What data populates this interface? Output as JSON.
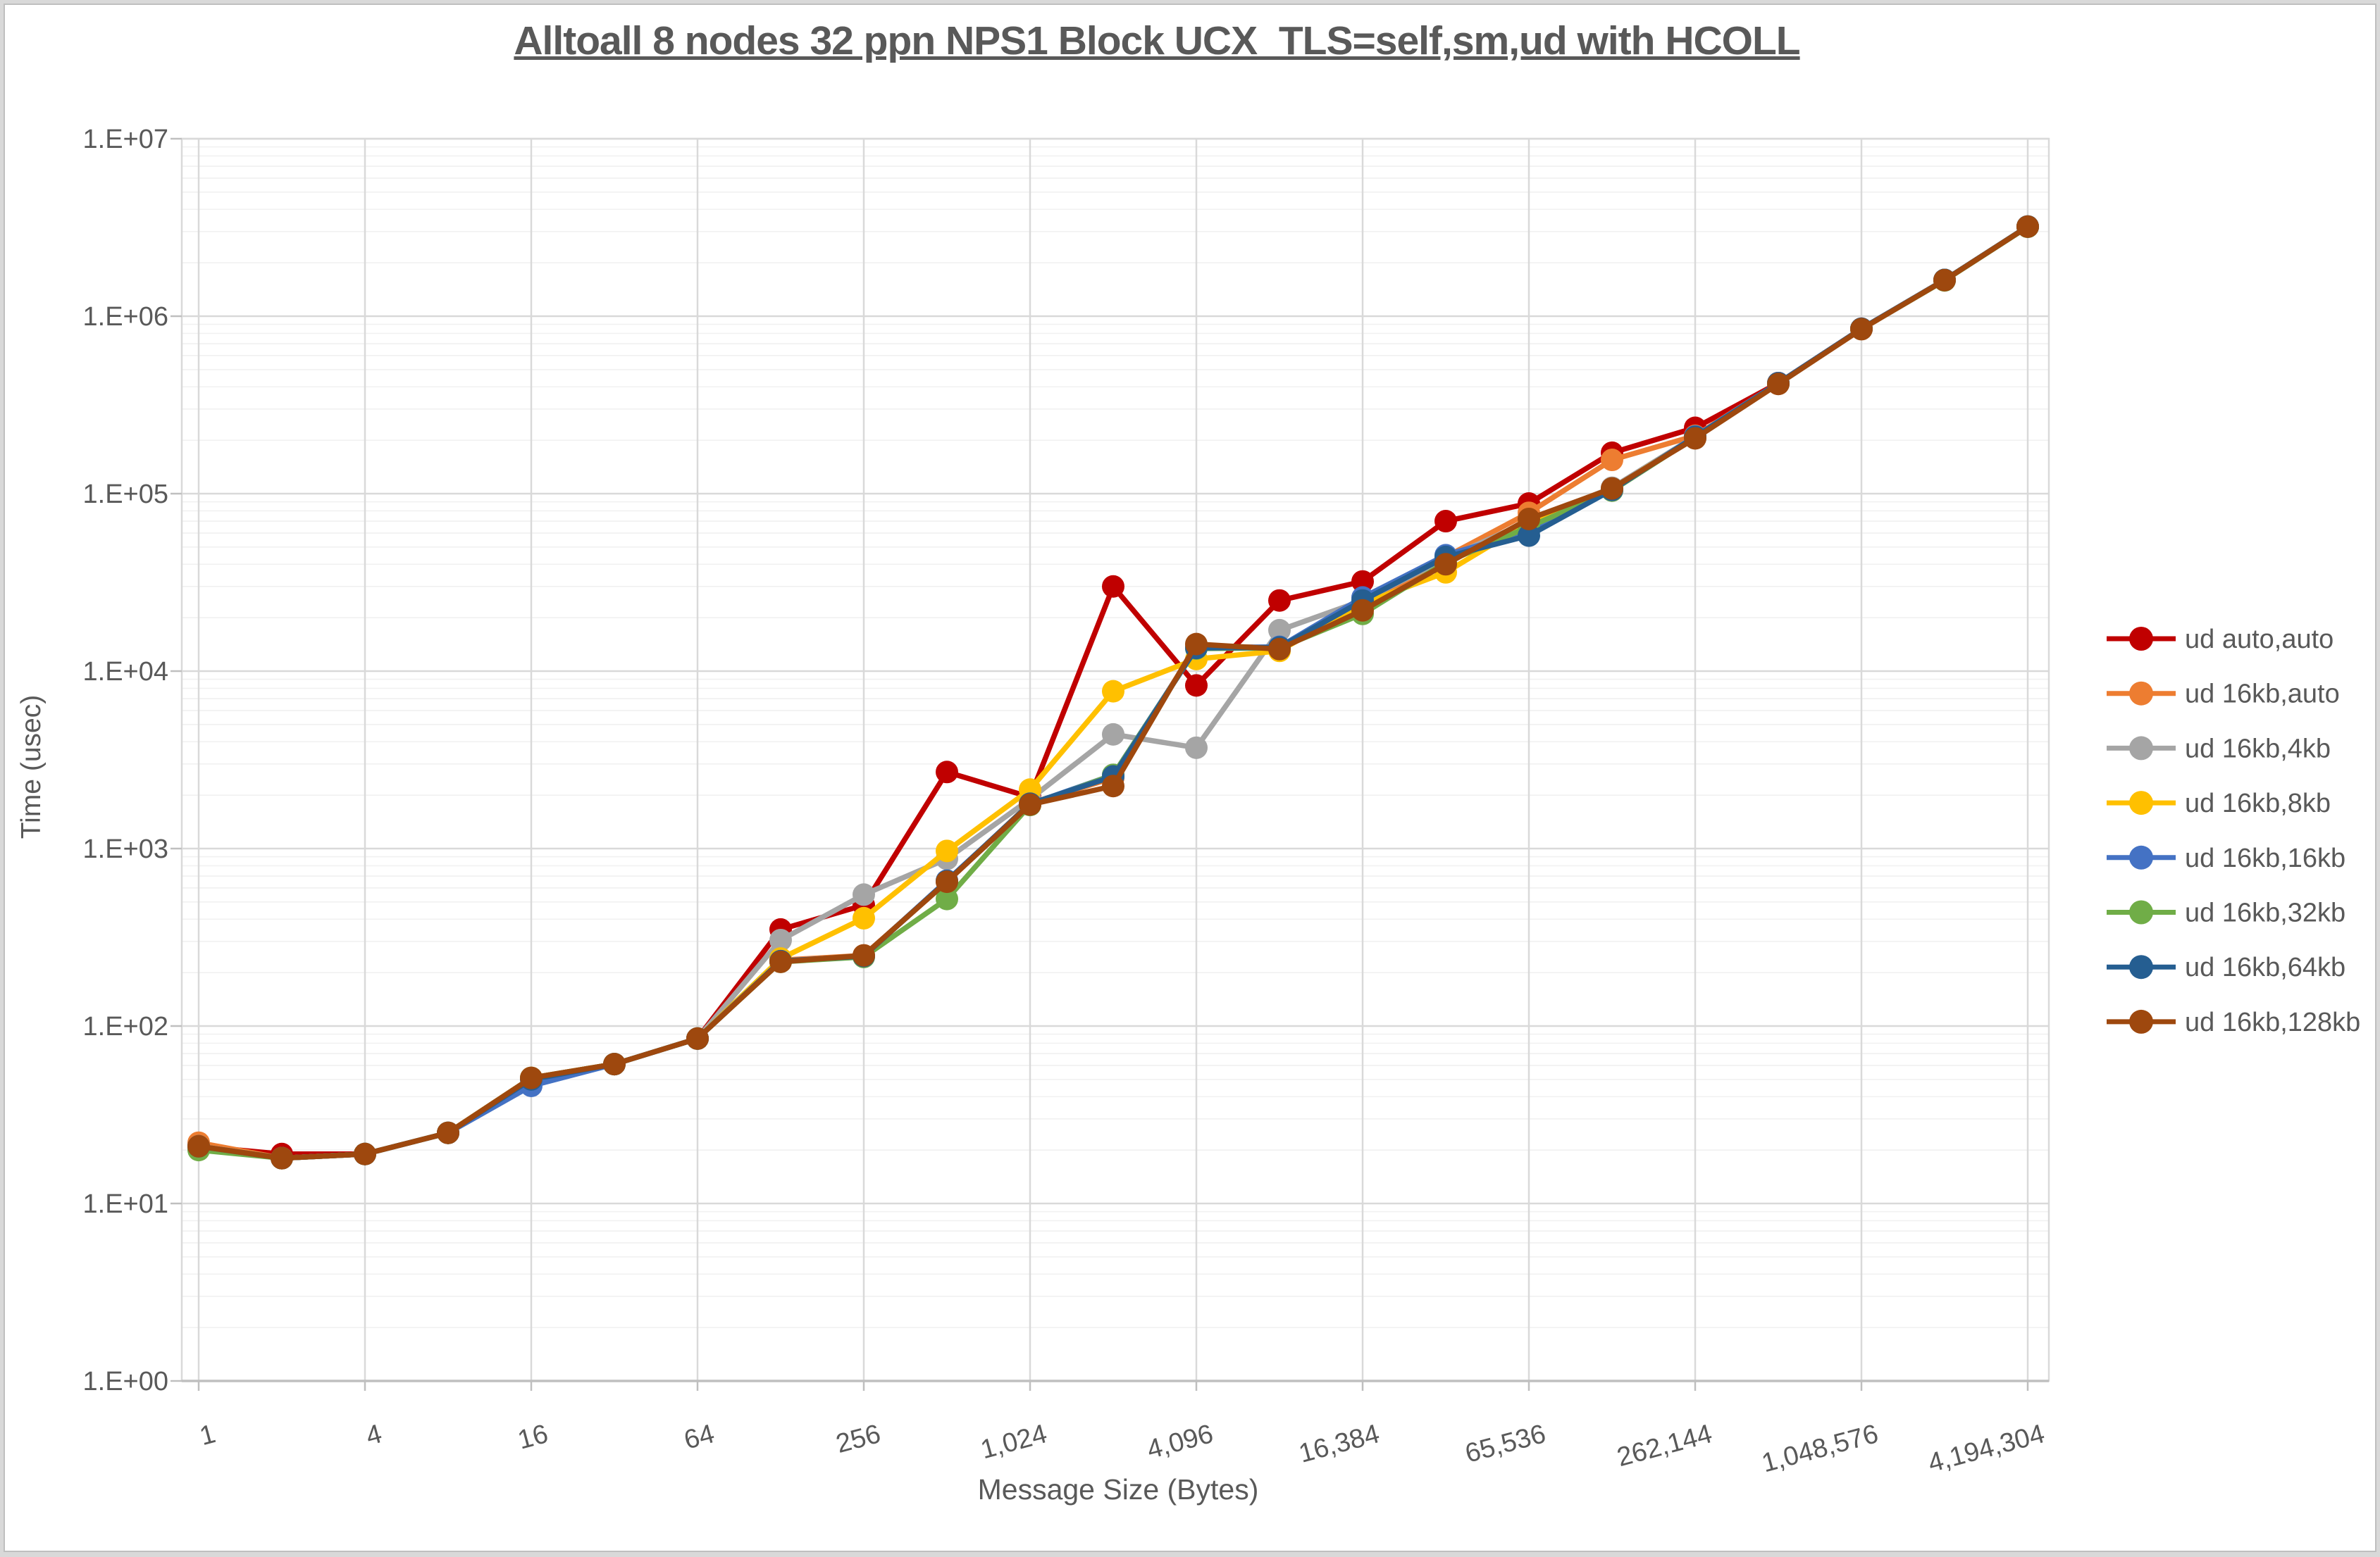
{
  "chart_data": {
    "type": "line",
    "title": "Alltoall 8 nodes 32 ppn NPS1 Block UCX_TLS=self,sm,ud with HCOLL",
    "xlabel": "Message Size (Bytes)",
    "ylabel": "Time (usec)",
    "x_scale": "log2 categories (powers of 2)",
    "y_scale": "log10",
    "ylim": [
      1,
      10000000
    ],
    "grid": {
      "major_horizontal": true,
      "minor_horizontal": true,
      "vertical_at_labeled_ticks": true
    },
    "legend_position": "right",
    "y_tick_labels": [
      "1.E+00",
      "1.E+01",
      "1.E+02",
      "1.E+03",
      "1.E+04",
      "1.E+05",
      "1.E+06",
      "1.E+07"
    ],
    "x_values": [
      1,
      2,
      4,
      8,
      16,
      32,
      64,
      128,
      256,
      512,
      1024,
      2048,
      4096,
      8192,
      16384,
      32768,
      65536,
      131072,
      262144,
      524288,
      1048576,
      2097152,
      4194304
    ],
    "x_tick_labels": [
      "1",
      "4",
      "16",
      "64",
      "256",
      "1,024",
      "4,096",
      "16,384",
      "65,536",
      "262,144",
      "1,048,576",
      "4,194,304"
    ],
    "series": [
      {
        "name": "ud auto,auto",
        "color": "#C00000",
        "values": [
          21,
          19,
          19,
          25,
          51,
          61,
          85,
          350,
          480,
          2700,
          1950,
          30000,
          8300,
          25000,
          32000,
          70000,
          88000,
          170000,
          235000,
          420000,
          850000,
          1600000,
          3200000
        ]
      },
      {
        "name": "ud 16kb,auto",
        "color": "#ED7D31",
        "values": [
          22,
          18,
          19,
          25,
          51,
          61,
          85,
          235,
          250,
          650,
          1800,
          2500,
          13800,
          13600,
          23000,
          44000,
          78000,
          155000,
          212000,
          420000,
          850000,
          1600000,
          3200000
        ]
      },
      {
        "name": "ud 16kb,4kb",
        "color": "#A5A5A5",
        "values": [
          21,
          18,
          19,
          25,
          51,
          61,
          85,
          305,
          550,
          875,
          1900,
          4400,
          3700,
          17000,
          25000,
          43000,
          70000,
          108000,
          210000,
          418000,
          848000,
          1600000,
          3200000
        ]
      },
      {
        "name": "ud 16kb,8kb",
        "color": "#FFC000",
        "values": [
          21,
          18,
          19,
          25,
          51,
          61,
          85,
          240,
          405,
          970,
          2150,
          7700,
          11700,
          13000,
          24000,
          36000,
          69000,
          106000,
          209000,
          419000,
          849000,
          1600000,
          3200000
        ]
      },
      {
        "name": "ud 16kb,16kb",
        "color": "#4472C4",
        "values": [
          21,
          18,
          19,
          25,
          46,
          61,
          85,
          232,
          248,
          660,
          1780,
          2600,
          13500,
          13700,
          26000,
          45000,
          62000,
          105000,
          210000,
          420000,
          850000,
          1600000,
          3200000
        ]
      },
      {
        "name": "ud 16kb,32kb",
        "color": "#70AD47",
        "values": [
          20,
          18,
          19,
          25,
          51,
          61,
          85,
          230,
          245,
          520,
          1760,
          2600,
          13400,
          13500,
          21000,
          41000,
          65000,
          104000,
          208000,
          417000,
          847000,
          1590000,
          3190000
        ]
      },
      {
        "name": "ud 16kb,64kb",
        "color": "#255E91",
        "values": [
          21,
          18,
          19,
          25,
          50,
          61,
          85,
          232,
          248,
          655,
          1790,
          2550,
          13500,
          13600,
          25000,
          44000,
          58000,
          105000,
          209000,
          419000,
          849000,
          1600000,
          3200000
        ]
      },
      {
        "name": "ud 16kb,128kb",
        "color": "#9E480E",
        "values": [
          21,
          18,
          19,
          25,
          51,
          61,
          85,
          230,
          250,
          650,
          1770,
          2250,
          14200,
          13300,
          22000,
          40000,
          72000,
          107000,
          205000,
          415000,
          845000,
          1595000,
          3195000
        ]
      }
    ]
  }
}
